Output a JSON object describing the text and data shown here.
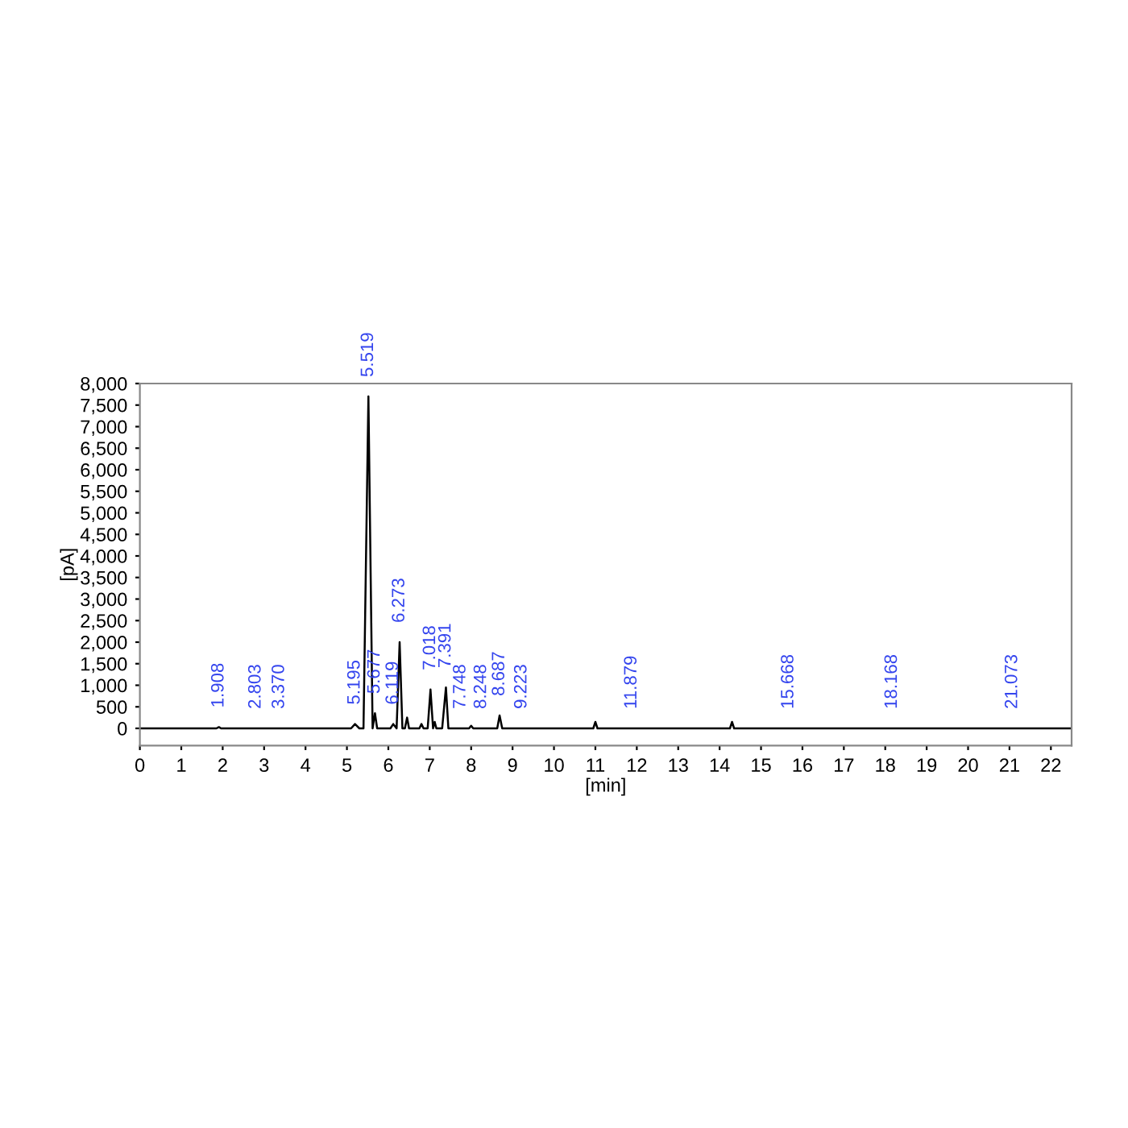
{
  "chart_data": {
    "type": "line",
    "xlabel": "[min]",
    "ylabel": "[pA]",
    "xlim": [
      0,
      22.5
    ],
    "xticks": [
      0,
      1,
      2,
      3,
      4,
      5,
      6,
      7,
      8,
      9,
      10,
      11,
      12,
      13,
      14,
      15,
      16,
      17,
      18,
      19,
      20,
      21,
      22
    ],
    "ylim": [
      -400,
      8000
    ],
    "yticks": [
      {
        "value": 0,
        "label": "0"
      },
      {
        "value": 500,
        "label": "500"
      },
      {
        "value": 1000,
        "label": "1,000"
      },
      {
        "value": 1500,
        "label": "1,500"
      },
      {
        "value": 2000,
        "label": "2,000"
      },
      {
        "value": 2500,
        "label": "2,500"
      },
      {
        "value": 3000,
        "label": "3,000"
      },
      {
        "value": 3500,
        "label": "3,500"
      },
      {
        "value": 4000,
        "label": "4,000"
      },
      {
        "value": 4500,
        "label": "4,500"
      },
      {
        "value": 5000,
        "label": "5,000"
      },
      {
        "value": 5500,
        "label": "5,500"
      },
      {
        "value": 6000,
        "label": "6,000"
      },
      {
        "value": 6500,
        "label": "6,500"
      },
      {
        "value": 7000,
        "label": "7,000"
      },
      {
        "value": 7500,
        "label": "7,500"
      },
      {
        "value": 8000,
        "label": "8,000"
      }
    ],
    "grid": false,
    "marker": "none",
    "line_style": "solid",
    "series": [
      {
        "color": "#000000",
        "x": [
          0,
          1.85,
          1.908,
          1.96,
          5.1,
          5.195,
          5.3,
          5.4,
          5.519,
          5.62,
          5.677,
          5.73,
          6.05,
          6.119,
          6.2,
          6.273,
          6.34,
          6.4,
          6.453,
          6.5,
          6.75,
          6.8,
          6.85,
          6.95,
          7.018,
          7.08,
          7.12,
          7.16,
          7.3,
          7.391,
          7.45,
          7.95,
          8.0,
          8.05,
          8.63,
          8.687,
          8.75,
          10.95,
          11.0,
          11.05,
          14.25,
          14.3,
          14.35,
          22.5
        ],
        "values": [
          0,
          0,
          30,
          0,
          0,
          100,
          0,
          0,
          7700,
          0,
          350,
          0,
          0,
          100,
          0,
          2000,
          0,
          0,
          250,
          0,
          0,
          100,
          0,
          0,
          900,
          0,
          150,
          0,
          0,
          950,
          0,
          0,
          60,
          0,
          0,
          300,
          0,
          0,
          150,
          0,
          0,
          150,
          0,
          0
        ]
      }
    ],
    "annotations": [
      {
        "text": "1.908",
        "x": 1.908,
        "y": 30
      },
      {
        "text": "2.803",
        "x": 2.803,
        "y": 0
      },
      {
        "text": "3.370",
        "x": 3.37,
        "y": 0
      },
      {
        "text": "5.195",
        "x": 5.195,
        "y": 100
      },
      {
        "text": "5.519",
        "x": 5.519,
        "y": 7700
      },
      {
        "text": "5.677",
        "x": 5.677,
        "y": 350
      },
      {
        "text": "6.119",
        "x": 6.119,
        "y": 100
      },
      {
        "text": "6.273",
        "x": 6.273,
        "y": 2000
      },
      {
        "text": "7.018",
        "x": 7.018,
        "y": 900
      },
      {
        "text": "7.391",
        "x": 7.391,
        "y": 950
      },
      {
        "text": "7.748",
        "x": 7.748,
        "y": 0
      },
      {
        "text": "8.248",
        "x": 8.248,
        "y": 0
      },
      {
        "text": "8.687",
        "x": 8.687,
        "y": 300
      },
      {
        "text": "9.223",
        "x": 9.223,
        "y": 0
      },
      {
        "text": "11.879",
        "x": 11.879,
        "y": 0
      },
      {
        "text": "15.668",
        "x": 15.668,
        "y": 0
      },
      {
        "text": "18.168",
        "x": 18.168,
        "y": 0
      },
      {
        "text": "21.073",
        "x": 21.073,
        "y": 0
      }
    ]
  }
}
